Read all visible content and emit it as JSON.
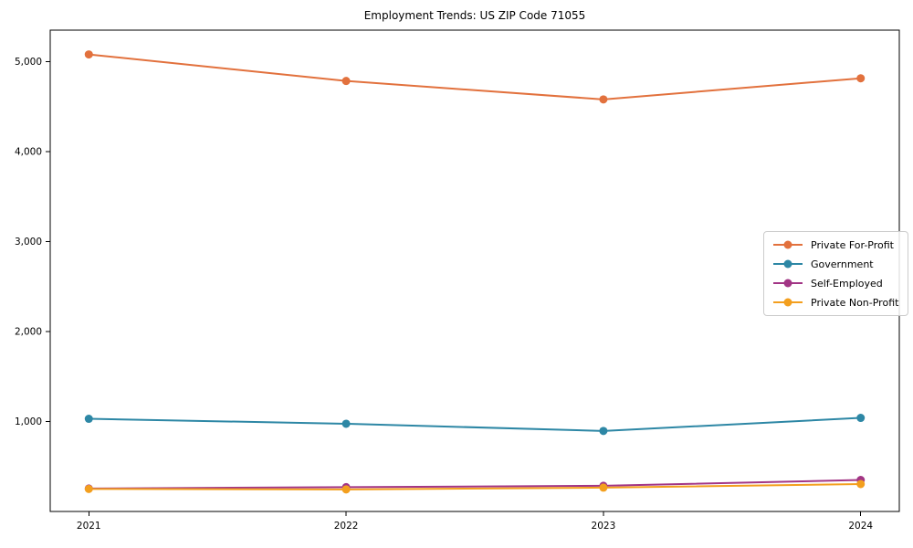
{
  "title": "Employment Trends: US ZIP Code 71055",
  "chart_data": {
    "type": "line",
    "title": "Employment Trends: US ZIP Code 71055",
    "x": [
      2021,
      2022,
      2023,
      2024
    ],
    "xtick_labels": [
      "2021",
      "2022",
      "2023",
      "2024"
    ],
    "yticks": [
      1000,
      2000,
      3000,
      4000,
      5000
    ],
    "ytick_labels": [
      "1,000",
      "2,000",
      "3,000",
      "4,000",
      "5,000"
    ],
    "series": [
      {
        "name": "Private For-Profit",
        "color": "#e2713d",
        "values": [
          5080,
          4785,
          4580,
          4815
        ]
      },
      {
        "name": "Government",
        "color": "#2d87a5",
        "values": [
          1030,
          975,
          895,
          1040
        ]
      },
      {
        "name": "Self-Employed",
        "color": "#a23585",
        "values": [
          255,
          270,
          285,
          350
        ]
      },
      {
        "name": "Private Non-Profit",
        "color": "#f39f1e",
        "values": [
          250,
          245,
          265,
          305
        ]
      }
    ],
    "xlabel": "",
    "ylabel": "",
    "xlim": [
      2020.85,
      2024.15
    ],
    "ylim": [
      0,
      5350
    ],
    "grid": false,
    "legend_position": "center-right",
    "marker": "circle",
    "background_color": "#ffffff",
    "spine_color": "#000000",
    "text_color": "#000000"
  }
}
